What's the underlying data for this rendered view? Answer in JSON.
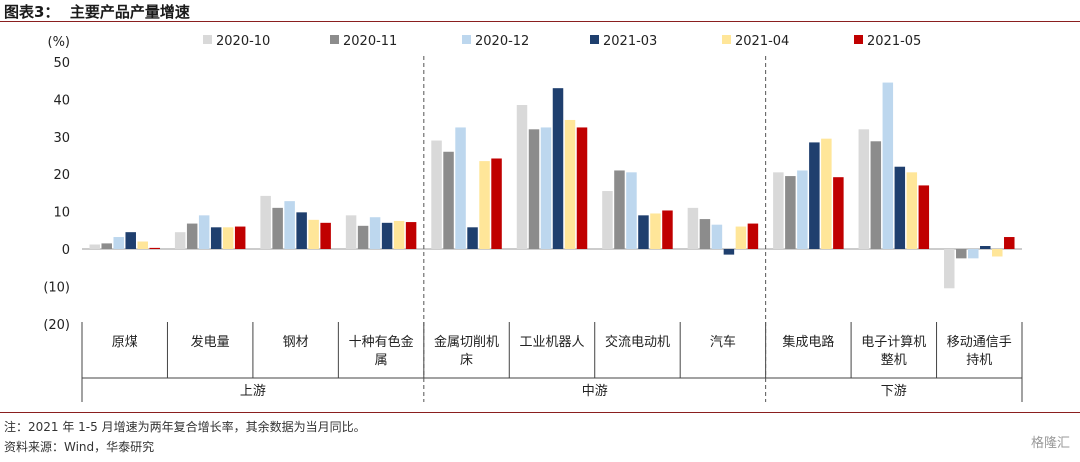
{
  "title": "图表3：  主要产品产量增速",
  "chart_data": {
    "type": "bar",
    "ylabel": "(%)",
    "ylim": [
      -20,
      50
    ],
    "yticks": [
      50,
      40,
      30,
      20,
      10,
      0,
      -10,
      -20
    ],
    "ytick_labels": [
      "50",
      "40",
      "30",
      "20",
      "10",
      "0",
      "(10)",
      "(20)"
    ],
    "categories": [
      "原煤",
      "发电量",
      "钢材",
      "十种有色金属",
      "金属切削机床",
      "工业机器人",
      "交流电动机",
      "汽车",
      "集成电路",
      "电子计算机整机",
      "移动通信手持机"
    ],
    "category_labels": [
      [
        "原煤"
      ],
      [
        "发电量"
      ],
      [
        "钢材"
      ],
      [
        "十种有色金",
        "属"
      ],
      [
        "金属切削机",
        "床"
      ],
      [
        "工业机器人"
      ],
      [
        "交流电动机"
      ],
      [
        "汽车"
      ],
      [
        "集成电路"
      ],
      [
        "电子计算机",
        "整机"
      ],
      [
        "移动通信手",
        "持机"
      ]
    ],
    "groups": [
      {
        "label": "上游",
        "start": 0,
        "end": 3
      },
      {
        "label": "中游",
        "start": 4,
        "end": 7
      },
      {
        "label": "下游",
        "start": 8,
        "end": 10
      }
    ],
    "series": [
      {
        "name": "2020-10",
        "color": "#d9d9d9",
        "values": [
          1.2,
          4.5,
          14.2,
          9.0,
          29.0,
          38.5,
          15.5,
          11.0,
          20.5,
          32.0,
          -10.5
        ]
      },
      {
        "name": "2020-11",
        "color": "#8c8c8c",
        "values": [
          1.5,
          6.8,
          11.0,
          6.2,
          26.0,
          32.0,
          21.0,
          8.0,
          19.5,
          28.8,
          -2.5
        ]
      },
      {
        "name": "2020-12",
        "color": "#bdd7ee",
        "values": [
          3.2,
          9.0,
          12.8,
          8.5,
          32.5,
          32.5,
          20.5,
          6.5,
          21.0,
          44.5,
          -2.5
        ]
      },
      {
        "name": "2021-03",
        "color": "#1f3f6e",
        "values": [
          4.5,
          5.8,
          9.8,
          7.0,
          5.8,
          43.0,
          9.0,
          -1.5,
          28.5,
          22.0,
          0.8
        ]
      },
      {
        "name": "2021-04",
        "color": "#ffe699",
        "values": [
          2.0,
          5.8,
          7.8,
          7.5,
          23.5,
          34.5,
          9.5,
          6.0,
          29.5,
          20.5,
          -2.0
        ]
      },
      {
        "name": "2021-05",
        "color": "#c00000",
        "values": [
          0.3,
          6.0,
          7.0,
          7.2,
          24.2,
          32.5,
          10.3,
          6.8,
          19.2,
          17.0,
          3.2
        ]
      }
    ]
  },
  "notes": {
    "note1": "注：2021 年 1-5 月增速为两年复合增长率，其余数据为当月同比。",
    "note2": "资料来源：Wind，华泰研究"
  },
  "watermark": "格隆汇"
}
